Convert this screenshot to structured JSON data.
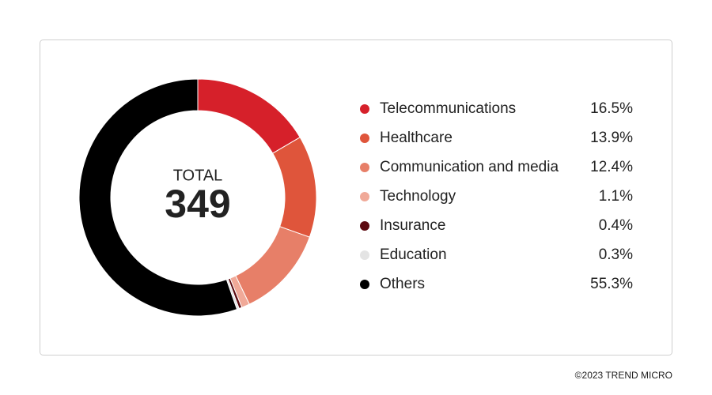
{
  "chart_data": {
    "type": "pie",
    "center_label": "TOTAL",
    "total": 349,
    "categories": [
      "Telecommunications",
      "Healthcare",
      "Communication and media",
      "Technology",
      "Insurance",
      "Education",
      "Others"
    ],
    "values": [
      16.5,
      13.9,
      12.4,
      1.1,
      0.4,
      0.3,
      55.3
    ],
    "value_labels": [
      "16.5%",
      "13.9%",
      "12.4%",
      "1.1%",
      "0.4%",
      "0.3%",
      "55.3%"
    ],
    "colors": [
      "#d6202a",
      "#df553b",
      "#e77f68",
      "#f0a998",
      "#5c0a10",
      "#e4e4e4",
      "#000000"
    ]
  },
  "footer": "©2023 TREND MICRO"
}
